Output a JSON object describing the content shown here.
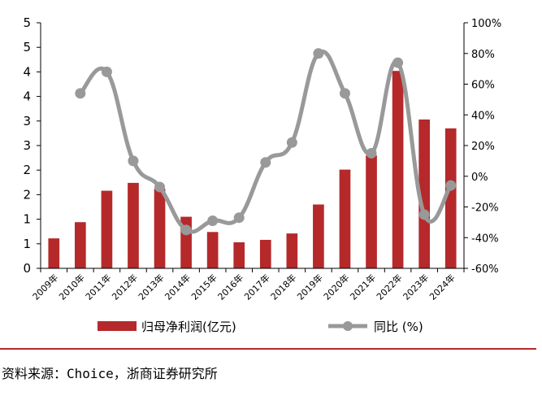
{
  "chart_data": {
    "type": "bar+line",
    "categories": [
      "2009年",
      "2010年",
      "2011年",
      "2012年",
      "2013年",
      "2014年",
      "2015年",
      "2016年",
      "2017年",
      "2018年",
      "2019年",
      "2020年",
      "2021年",
      "2022年",
      "2023年",
      "2024年"
    ],
    "series": [
      {
        "name": "归母净利润(亿元)",
        "type": "bar",
        "axis": "left",
        "color": "#b5292b",
        "values": [
          0.61,
          0.94,
          1.58,
          1.74,
          1.62,
          1.05,
          0.74,
          0.53,
          0.58,
          0.71,
          1.3,
          2.01,
          2.3,
          4.02,
          3.03,
          2.85
        ]
      },
      {
        "name": "同比 (%)",
        "type": "line",
        "axis": "right",
        "color": "#999999",
        "values": [
          null,
          54,
          68,
          10,
          -7,
          -35,
          -29,
          -27,
          9,
          22,
          80,
          54,
          15,
          74,
          -25,
          -6
        ]
      }
    ],
    "left_axis": {
      "min": 0,
      "max": 5,
      "ticks": [
        0,
        0.5,
        1,
        1.5,
        2,
        2.5,
        3,
        3.5,
        4,
        4.5,
        5
      ],
      "tick_labels": [
        "0",
        "1",
        "1",
        "2",
        "2",
        "3",
        "3",
        "4",
        "4",
        "5",
        "5"
      ]
    },
    "right_axis": {
      "min": -60,
      "max": 100,
      "ticks": [
        -60,
        -40,
        -20,
        0,
        20,
        40,
        60,
        80,
        100
      ],
      "tick_labels": [
        "-60%",
        "-40%",
        "-20%",
        "0%",
        "20%",
        "40%",
        "60%",
        "80%",
        "100%"
      ]
    },
    "grid": false,
    "legend_position": "bottom"
  },
  "source_text": "资料来源：Choice，浙商证券研究所"
}
